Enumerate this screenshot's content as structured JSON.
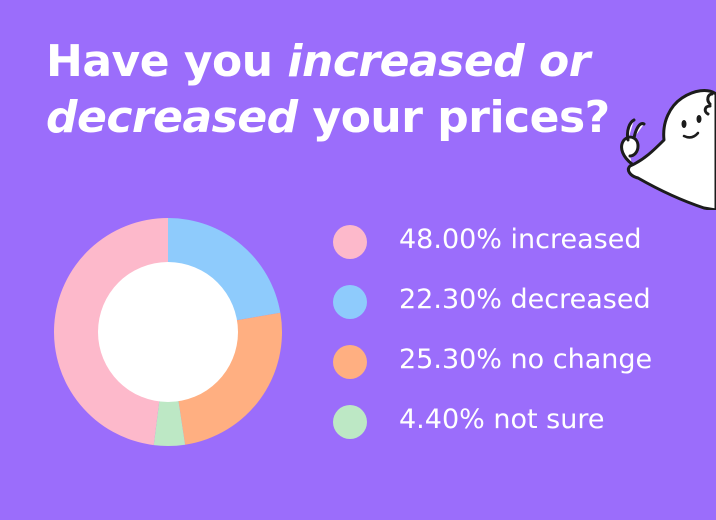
{
  "title": {
    "part1": "Have you ",
    "part2_italic": "increased or decreased",
    "part3": " your prices?"
  },
  "chart_data": {
    "type": "pie",
    "donut": true,
    "start": "top",
    "direction": "clockwise",
    "slices": [
      {
        "label": "decreased",
        "value": 22.3,
        "color": "#8ECBFC"
      },
      {
        "label": "no change",
        "value": 25.3,
        "color": "#FFAF81"
      },
      {
        "label": "not sure",
        "value": 4.4,
        "color": "#BDE8C5"
      },
      {
        "label": "increased",
        "value": 48.0,
        "color": "#FDB9CB"
      }
    ],
    "legend_position": "right",
    "legend": [
      {
        "text": "48.00% increased",
        "color": "#FDB9CB"
      },
      {
        "text": "22.30% decreased",
        "color": "#8ECBFC"
      },
      {
        "text": "25.30% no change",
        "color": "#FFAF81"
      },
      {
        "text": "4.40% not sure",
        "color": "#BDE8C5"
      }
    ]
  },
  "colors": {
    "background": "#9B6DFB",
    "title_text": "#FFFFFF",
    "donut_hole": "#FFFFFF"
  },
  "mascot": {
    "icon": "ghost-mascot-ok-hand"
  }
}
